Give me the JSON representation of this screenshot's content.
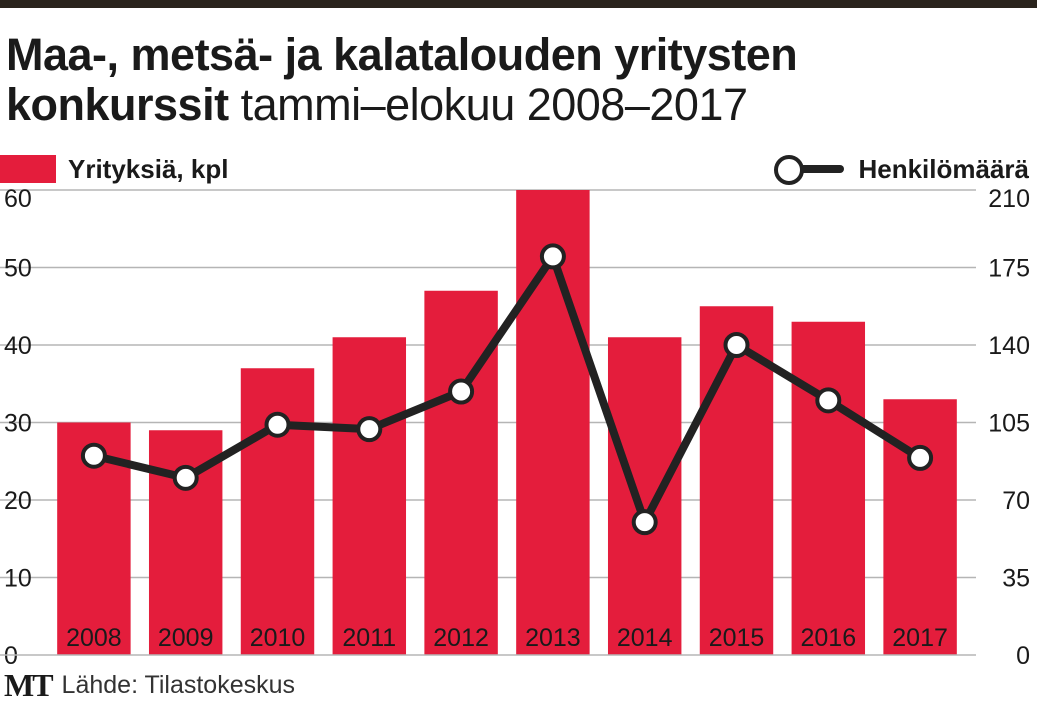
{
  "header": {
    "title_bold": "Maa-, metsä- ja kalatalouden yritysten konkurssit",
    "title_light": "tammi–elokuu 2008–2017"
  },
  "legend": {
    "bars": "Yrityksiä, kpl",
    "line": "Henkilömäärä"
  },
  "colors": {
    "bar": "#e41d3c",
    "line": "#222222",
    "grid": "#b5b5b5",
    "text": "#1a1a1a"
  },
  "footer": {
    "logo": "MT",
    "source": "Lähde: Tilastokeskus"
  },
  "chart_data": {
    "type": "bar",
    "title": "Maa-, metsä- ja kalatalouden yritysten konkurssit tammi–elokuu 2008–2017",
    "categories": [
      "2008",
      "2009",
      "2010",
      "2011",
      "2012",
      "2013",
      "2014",
      "2015",
      "2016",
      "2017"
    ],
    "series": [
      {
        "name": "Yrityksiä, kpl",
        "type": "bar",
        "axis": "left",
        "values": [
          30,
          29,
          37,
          41,
          47,
          60,
          41,
          45,
          43,
          33
        ]
      },
      {
        "name": "Henkilömäärä",
        "type": "line",
        "axis": "right",
        "values": [
          90,
          80,
          104,
          102,
          119,
          180,
          60,
          140,
          115,
          89
        ]
      }
    ],
    "y_left": {
      "min": 0,
      "max": 60,
      "ticks": [
        "0",
        "10",
        "20",
        "30",
        "40",
        "50",
        "60"
      ]
    },
    "y_right": {
      "min": 0,
      "max": 210,
      "ticks": [
        "0",
        "35",
        "70",
        "105",
        "140",
        "175",
        "210"
      ]
    },
    "grid": true,
    "legend_position": "top"
  }
}
